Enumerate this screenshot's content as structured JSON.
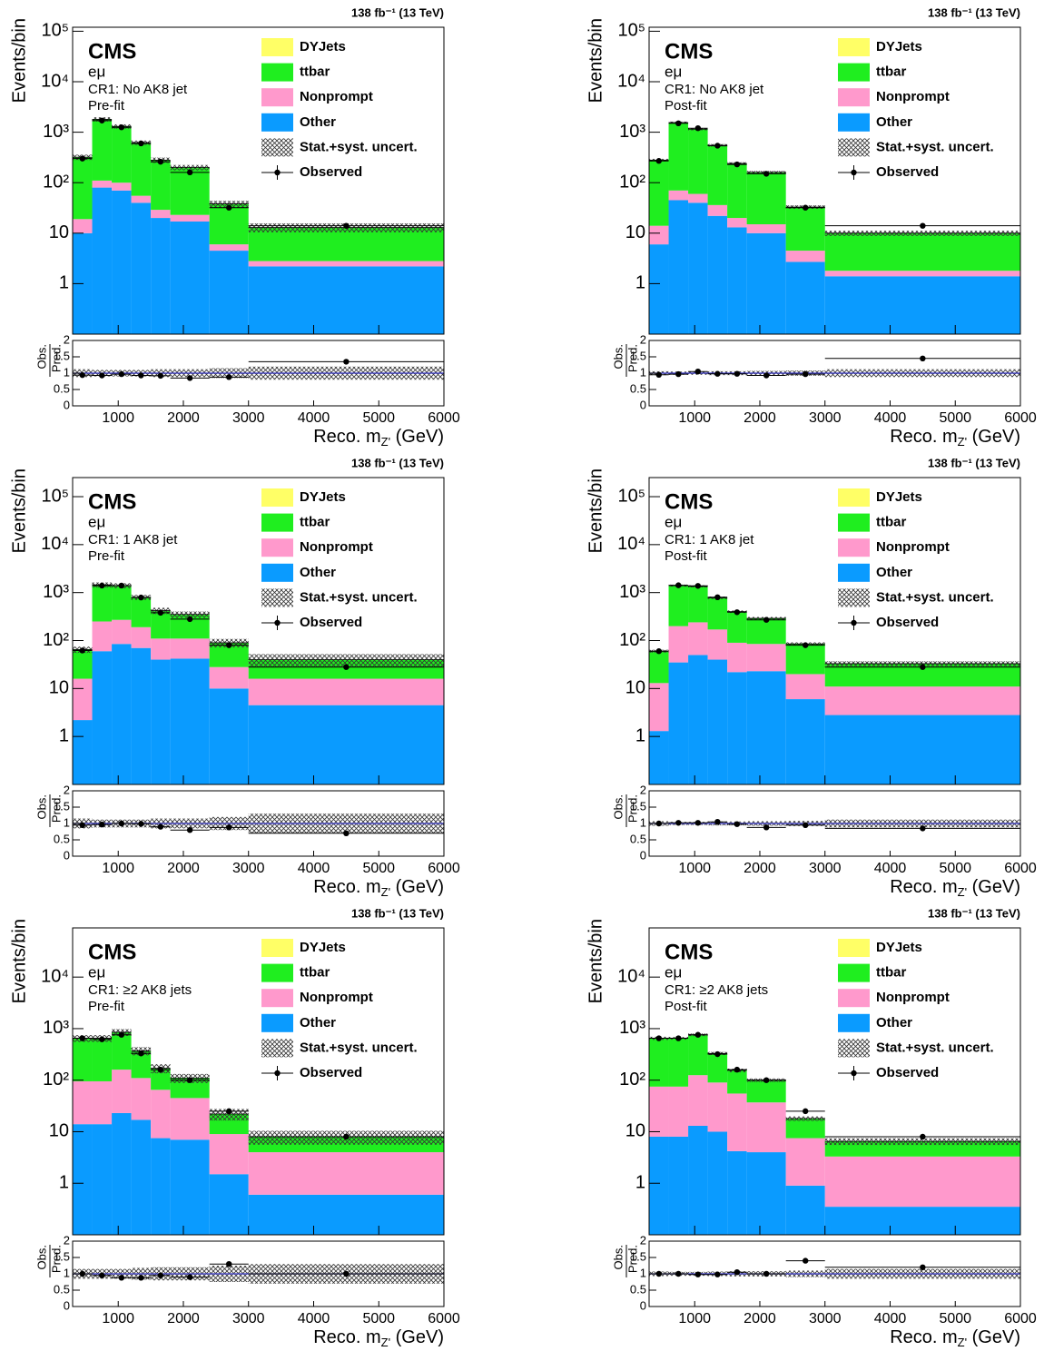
{
  "chart_data": [
    {
      "type": "stacked_histogram",
      "lumi": "138 fb⁻¹ (13 TeV)",
      "experiment": "CMS",
      "channel": "eμ",
      "region": "CR1: No AK8 jet",
      "stage": "Pre-fit",
      "ylabel": "Events/bin",
      "xlabel": [
        "Reco. m",
        "Z'",
        " (GeV)"
      ],
      "log_y": true,
      "bins": [
        300,
        600,
        900,
        1200,
        1500,
        1800,
        2400,
        3000,
        6000
      ],
      "xlim": [
        300,
        6000
      ],
      "xticks": [
        1000,
        2000,
        3000,
        4000,
        5000,
        6000
      ],
      "ylim": [
        0.1,
        120000
      ],
      "yticks": [
        1,
        10,
        {
          "value": 100,
          "label": "10²"
        },
        {
          "value": 1000,
          "label": "10³"
        },
        {
          "value": 10000,
          "label": "10⁴"
        },
        {
          "value": 100000,
          "label": "10⁵"
        }
      ],
      "series": [
        {
          "name": "DYJets",
          "color": "#ffff66",
          "values": [
            0,
            0,
            0,
            0,
            0,
            0,
            0,
            0
          ]
        },
        {
          "name": "ttbar",
          "color": "#1fee1f",
          "values": [
            301,
            1690,
            1200,
            565,
            251,
            177,
            32,
            10.2
          ]
        },
        {
          "name": "Nonprompt",
          "color": "#ff99cc",
          "values": [
            9,
            30,
            30,
            15,
            9,
            6,
            1.5,
            0.6
          ]
        },
        {
          "name": "Other",
          "color": "#0a9bff",
          "values": [
            10,
            80,
            70,
            40,
            20,
            17,
            4.5,
            2.2
          ]
        }
      ],
      "uncertainty": {
        "name": "Stat.+syst. uncert.",
        "values": [
          0.12,
          0.1,
          0.1,
          0.1,
          0.12,
          0.12,
          0.15,
          0.2
        ]
      },
      "observed": {
        "name": "Observed",
        "values": [
          300,
          1700,
          1250,
          600,
          260,
          160,
          32,
          14
        ]
      },
      "ratio": {
        "ylabel": [
          "Obs.",
          "Pred."
        ],
        "ylim": [
          0,
          2
        ],
        "yticks": [
          0,
          0.5,
          1,
          1.5,
          2
        ],
        "reference": 1,
        "values": [
          0.94,
          0.93,
          0.97,
          0.93,
          0.92,
          0.85,
          0.88,
          1.35
        ]
      }
    },
    {
      "type": "stacked_histogram",
      "lumi": "138 fb⁻¹ (13 TeV)",
      "experiment": "CMS",
      "channel": "eμ",
      "region": "CR1: No AK8 jet",
      "stage": "Post-fit",
      "ylabel": "Events/bin",
      "xlabel": [
        "Reco. m",
        "Z'",
        " (GeV)"
      ],
      "log_y": true,
      "bins": [
        300,
        600,
        900,
        1200,
        1500,
        1800,
        2400,
        3000,
        6000
      ],
      "xlim": [
        300,
        6000
      ],
      "xticks": [
        1000,
        2000,
        3000,
        4000,
        5000,
        6000
      ],
      "ylim": [
        0.1,
        120000
      ],
      "yticks": [
        1,
        10,
        {
          "value": 100,
          "label": "10²"
        },
        {
          "value": 1000,
          "label": "10³"
        },
        {
          "value": 10000,
          "label": "10⁴"
        },
        {
          "value": 100000,
          "label": "10⁵"
        }
      ],
      "series": [
        {
          "name": "DYJets",
          "color": "#ffff66",
          "values": [
            0,
            0,
            0,
            0,
            0,
            0,
            0,
            0
          ]
        },
        {
          "name": "ttbar",
          "color": "#1fee1f",
          "values": [
            266,
            1480,
            1090,
            514,
            220,
            145,
            28.5,
            8.2
          ]
        },
        {
          "name": "Nonprompt",
          "color": "#ff99cc",
          "values": [
            8,
            25,
            20,
            14,
            7,
            5,
            1.8,
            0.4
          ]
        },
        {
          "name": "Other",
          "color": "#0a9bff",
          "values": [
            6,
            45,
            40,
            22,
            13,
            10,
            2.7,
            1.4
          ]
        }
      ],
      "uncertainty": {
        "name": "Stat.+syst. uncert.",
        "values": [
          0.06,
          0.05,
          0.05,
          0.06,
          0.06,
          0.07,
          0.08,
          0.12
        ]
      },
      "observed": {
        "name": "Observed",
        "values": [
          270,
          1500,
          1200,
          540,
          230,
          150,
          32,
          14
        ]
      },
      "ratio": {
        "ylabel": [
          "Obs.",
          "Pred."
        ],
        "ylim": [
          0,
          2
        ],
        "yticks": [
          0,
          0.5,
          1,
          1.5,
          2
        ],
        "reference": 1,
        "values": [
          0.95,
          0.97,
          1.05,
          0.98,
          0.98,
          0.93,
          0.97,
          1.45
        ]
      }
    },
    {
      "type": "stacked_histogram",
      "lumi": "138 fb⁻¹ (13 TeV)",
      "experiment": "CMS",
      "channel": "eμ",
      "region": "CR1: 1 AK8 jet",
      "stage": "Pre-fit",
      "ylabel": "Events/bin",
      "xlabel": [
        "Reco. m",
        "Z'",
        " (GeV)"
      ],
      "log_y": true,
      "bins": [
        300,
        600,
        900,
        1200,
        1500,
        1800,
        2400,
        3000,
        6000
      ],
      "xlim": [
        300,
        6000
      ],
      "xticks": [
        1000,
        2000,
        3000,
        4000,
        5000,
        6000
      ],
      "ylim": [
        0.1,
        250000
      ],
      "yticks": [
        1,
        10,
        {
          "value": 100,
          "label": "10²"
        },
        {
          "value": 1000,
          "label": "10³"
        },
        {
          "value": 10000,
          "label": "10⁴"
        },
        {
          "value": 100000,
          "label": "10⁵"
        }
      ],
      "series": [
        {
          "name": "DYJets",
          "color": "#ffff66",
          "values": [
            0,
            0,
            0,
            0,
            0,
            0,
            0,
            0
          ]
        },
        {
          "name": "ttbar",
          "color": "#1fee1f",
          "values": [
            49,
            1200,
            1130,
            610,
            310,
            240,
            62,
            24
          ]
        },
        {
          "name": "Nonprompt",
          "color": "#ff99cc",
          "values": [
            13.8,
            190,
            185,
            120,
            70,
            68,
            18,
            11.5
          ]
        },
        {
          "name": "Other",
          "color": "#0a9bff",
          "values": [
            2.2,
            60,
            85,
            70,
            40,
            42,
            10,
            4.5
          ]
        }
      ],
      "uncertainty": {
        "name": "Stat.+syst. uncert.",
        "values": [
          0.15,
          0.12,
          0.12,
          0.12,
          0.15,
          0.15,
          0.2,
          0.3
        ]
      },
      "observed": {
        "name": "Observed",
        "values": [
          62,
          1400,
          1400,
          790,
          380,
          280,
          80,
          28
        ]
      },
      "ratio": {
        "ylabel": [
          "Obs.",
          "Pred."
        ],
        "ylim": [
          0,
          2
        ],
        "yticks": [
          0,
          0.5,
          1,
          1.5,
          2
        ],
        "reference": 1,
        "values": [
          0.95,
          0.97,
          1.0,
          0.99,
          0.9,
          0.8,
          0.88,
          0.7
        ]
      }
    },
    {
      "type": "stacked_histogram",
      "lumi": "138 fb⁻¹ (13 TeV)",
      "experiment": "CMS",
      "channel": "eμ",
      "region": "CR1: 1 AK8 jet",
      "stage": "Post-fit",
      "ylabel": "Events/bin",
      "xlabel": [
        "Reco. m",
        "Z'",
        " (GeV)"
      ],
      "log_y": true,
      "bins": [
        300,
        600,
        900,
        1200,
        1500,
        1800,
        2400,
        3000,
        6000
      ],
      "xlim": [
        300,
        6000
      ],
      "xticks": [
        1000,
        2000,
        3000,
        4000,
        5000,
        6000
      ],
      "ylim": [
        0.1,
        250000
      ],
      "yticks": [
        1,
        10,
        {
          "value": 100,
          "label": "10²"
        },
        {
          "value": 1000,
          "label": "10³"
        },
        {
          "value": 10000,
          "label": "10⁴"
        },
        {
          "value": 100000,
          "label": "10⁵"
        }
      ],
      "series": [
        {
          "name": "DYJets",
          "color": "#ffff66",
          "values": [
            0,
            0,
            0,
            0,
            0,
            0,
            0,
            0
          ]
        },
        {
          "name": "ttbar",
          "color": "#1fee1f",
          "values": [
            47,
            1200,
            1110,
            610,
            310,
            205,
            65,
            22
          ]
        },
        {
          "name": "Nonprompt",
          "color": "#ff99cc",
          "values": [
            11.7,
            165,
            190,
            130,
            68,
            62,
            14,
            8.2
          ]
        },
        {
          "name": "Other",
          "color": "#0a9bff",
          "values": [
            1.3,
            35,
            50,
            40,
            22,
            23,
            6,
            2.8
          ]
        }
      ],
      "uncertainty": {
        "name": "Stat.+syst. uncert.",
        "values": [
          0.07,
          0.05,
          0.05,
          0.06,
          0.06,
          0.07,
          0.08,
          0.12
        ]
      },
      "observed": {
        "name": "Observed",
        "values": [
          60,
          1420,
          1380,
          800,
          390,
          270,
          80,
          28
        ]
      },
      "ratio": {
        "ylabel": [
          "Obs.",
          "Pred."
        ],
        "ylim": [
          0,
          2
        ],
        "yticks": [
          0,
          0.5,
          1,
          1.5,
          2
        ],
        "reference": 1,
        "values": [
          1.0,
          1.02,
          1.02,
          1.05,
          0.98,
          0.88,
          0.95,
          0.85
        ]
      }
    },
    {
      "type": "stacked_histogram",
      "lumi": "138 fb⁻¹ (13 TeV)",
      "experiment": "CMS",
      "channel": "eμ",
      "region": "CR1: ≥2 AK8 jets",
      "stage": "Pre-fit",
      "ylabel": "Events/bin",
      "xlabel": [
        "Reco. m",
        "Z'",
        " (GeV)"
      ],
      "log_y": true,
      "bins": [
        300,
        600,
        900,
        1200,
        1500,
        1800,
        2400,
        3000,
        6000
      ],
      "xlim": [
        300,
        6000
      ],
      "xticks": [
        1000,
        2000,
        3000,
        4000,
        5000,
        6000
      ],
      "ylim": [
        0.1,
        90000
      ],
      "yticks": [
        1,
        10,
        {
          "value": 100,
          "label": "10²"
        },
        {
          "value": 1000,
          "label": "10³"
        },
        {
          "value": 10000,
          "label": "10⁴"
        }
      ],
      "series": [
        {
          "name": "DYJets",
          "color": "#ffff66",
          "values": [
            0,
            0,
            0,
            0,
            0,
            0,
            0,
            0
          ]
        },
        {
          "name": "ttbar",
          "color": "#1fee1f",
          "values": [
            555,
            555,
            690,
            260,
            105,
            65,
            13,
            4
          ]
        },
        {
          "name": "Nonprompt",
          "color": "#ff99cc",
          "values": [
            81,
            81,
            137,
            93,
            57.5,
            38,
            7.5,
            3.4
          ]
        },
        {
          "name": "Other",
          "color": "#0a9bff",
          "values": [
            14,
            14,
            23,
            17,
            7.5,
            7,
            1.5,
            0.6
          ]
        }
      ],
      "uncertainty": {
        "name": "Stat.+syst. uncert.",
        "values": [
          0.15,
          0.15,
          0.15,
          0.18,
          0.2,
          0.2,
          0.25,
          0.3
        ]
      },
      "observed": {
        "name": "Observed",
        "values": [
          650,
          620,
          760,
          330,
          160,
          100,
          25,
          8
        ]
      },
      "ratio": {
        "ylabel": [
          "Obs.",
          "Pred."
        ],
        "ylim": [
          0,
          2
        ],
        "yticks": [
          0,
          0.5,
          1,
          1.5,
          2
        ],
        "reference": 1,
        "values": [
          1.0,
          0.95,
          0.88,
          0.88,
          0.95,
          0.9,
          1.3,
          1.0
        ]
      }
    },
    {
      "type": "stacked_histogram",
      "lumi": "138 fb⁻¹ (13 TeV)",
      "experiment": "CMS",
      "channel": "eμ",
      "region": "CR1: ≥2 AK8 jets",
      "stage": "Post-fit",
      "ylabel": "Events/bin",
      "xlabel": [
        "Reco. m",
        "Z'",
        " (GeV)"
      ],
      "log_y": true,
      "bins": [
        300,
        600,
        900,
        1200,
        1500,
        1800,
        2400,
        3000,
        6000
      ],
      "xlim": [
        300,
        6000
      ],
      "xticks": [
        1000,
        2000,
        3000,
        4000,
        5000,
        6000
      ],
      "ylim": [
        0.1,
        90000
      ],
      "yticks": [
        1,
        10,
        {
          "value": 100,
          "label": "10²"
        },
        {
          "value": 1000,
          "label": "10³"
        },
        {
          "value": 10000,
          "label": "10⁴"
        }
      ],
      "series": [
        {
          "name": "DYJets",
          "color": "#ffff66",
          "values": [
            0,
            0,
            0,
            0,
            0,
            0,
            0,
            0
          ]
        },
        {
          "name": "ttbar",
          "color": "#1fee1f",
          "values": [
            575,
            575,
            635,
            240,
            100,
            63,
            10.5,
            3.2
          ]
        },
        {
          "name": "Nonprompt",
          "color": "#ff99cc",
          "values": [
            67,
            67,
            112,
            80,
            50.8,
            33,
            6.6,
            2.95
          ]
        },
        {
          "name": "Other",
          "color": "#0a9bff",
          "values": [
            8,
            8,
            13,
            10,
            4.2,
            4,
            0.9,
            0.35
          ]
        }
      ],
      "uncertainty": {
        "name": "Stat.+syst. uncert.",
        "values": [
          0.07,
          0.06,
          0.06,
          0.07,
          0.08,
          0.08,
          0.1,
          0.15
        ]
      },
      "observed": {
        "name": "Observed",
        "values": [
          650,
          650,
          760,
          320,
          160,
          100,
          25,
          8
        ]
      },
      "ratio": {
        "ylabel": [
          "Obs.",
          "Pred."
        ],
        "ylim": [
          0,
          2
        ],
        "yticks": [
          0,
          0.5,
          1,
          1.5,
          2
        ],
        "reference": 1,
        "values": [
          1.0,
          1.0,
          0.98,
          0.98,
          1.05,
          1.0,
          1.4,
          1.2
        ]
      }
    }
  ]
}
